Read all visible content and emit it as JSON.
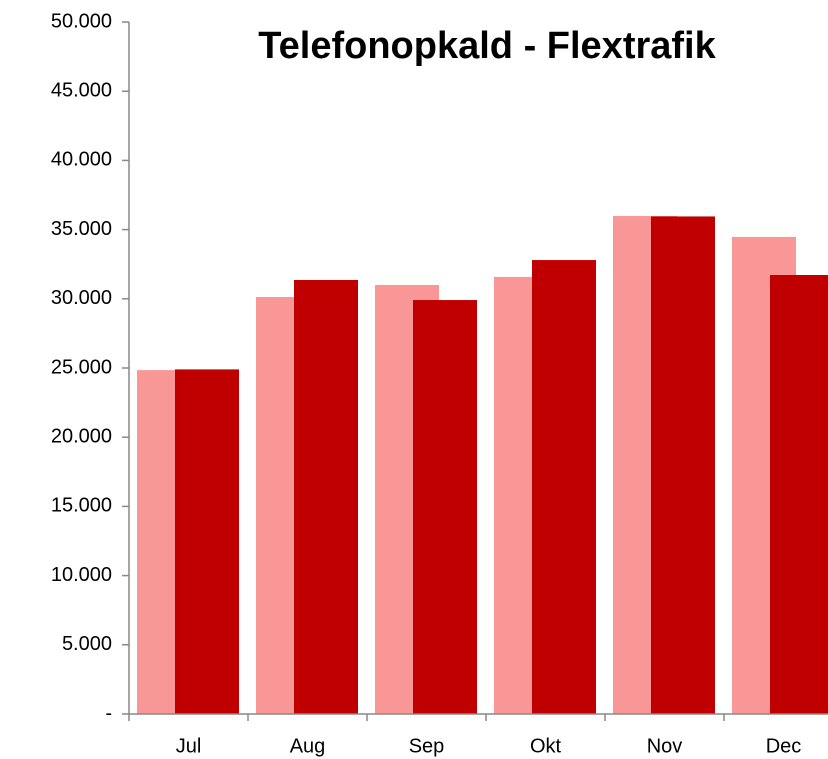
{
  "chart_data": {
    "type": "bar",
    "title": "Telefonopkald - Flextrafik",
    "categories": [
      "Jul",
      "Aug",
      "Sep",
      "Okt",
      "Nov",
      "Dec"
    ],
    "series": [
      {
        "color": "#f99797",
        "values": [
          24850,
          30130,
          31000,
          31580,
          35980,
          34470
        ]
      },
      {
        "color": "#c00000",
        "values": [
          24900,
          31360,
          29910,
          32800,
          35950,
          31720
        ]
      }
    ],
    "ylim": [
      0,
      50000
    ],
    "yticks": [
      {
        "value": 0,
        "label": "-"
      },
      {
        "value": 5000,
        "label": "5.000"
      },
      {
        "value": 10000,
        "label": "10.000"
      },
      {
        "value": 15000,
        "label": "15.000"
      },
      {
        "value": 20000,
        "label": "20.000"
      },
      {
        "value": 25000,
        "label": "25.000"
      },
      {
        "value": 30000,
        "label": "30.000"
      },
      {
        "value": 35000,
        "label": "35.000"
      },
      {
        "value": 40000,
        "label": "40.000"
      },
      {
        "value": 45000,
        "label": "45.000"
      },
      {
        "value": 50000,
        "label": "50.000"
      }
    ],
    "grid": false
  }
}
